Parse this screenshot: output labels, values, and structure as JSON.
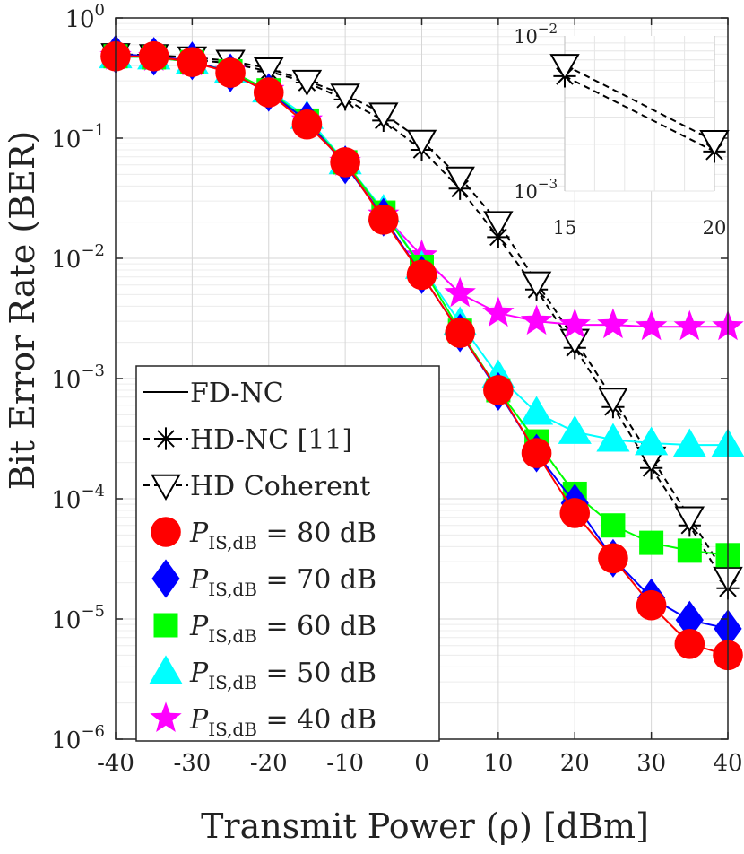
{
  "chart_data": {
    "type": "line",
    "xlabel": "Transmit Power (ρ) [dBm]",
    "ylabel": "Bit Error Rate (BER)",
    "yscale": "log",
    "xlim": [
      -40,
      40
    ],
    "ylim": [
      1e-06,
      1
    ],
    "grid": true,
    "x": [
      -40,
      -35,
      -30,
      -25,
      -20,
      -15,
      -10,
      -5,
      0,
      5,
      10,
      15,
      20,
      25,
      30,
      35,
      40
    ],
    "x_ticks": [
      "-40",
      "-30",
      "-20",
      "-10",
      "0",
      "10",
      "20",
      "30",
      "40"
    ],
    "y_ticks": [
      {
        "base": "10",
        "exp": "0"
      },
      {
        "base": "10",
        "exp": "−1"
      },
      {
        "base": "10",
        "exp": "−2"
      },
      {
        "base": "10",
        "exp": "−3"
      },
      {
        "base": "10",
        "exp": "−4"
      },
      {
        "base": "10",
        "exp": "−5"
      },
      {
        "base": "10",
        "exp": "−6"
      }
    ],
    "series": [
      {
        "name": "HD-NC [11]",
        "color": "#000000",
        "marker": "asterisk",
        "dash": true,
        "values": [
          0.48,
          0.47,
          0.45,
          0.42,
          0.36,
          0.29,
          0.21,
          0.14,
          0.08,
          0.038,
          0.015,
          0.0055,
          0.0018,
          0.00058,
          0.00018,
          6e-05,
          1.8e-05
        ]
      },
      {
        "name": "HD Coherent",
        "color": "#000000",
        "marker": "triangle-down",
        "dash": true,
        "values": [
          0.5,
          0.49,
          0.47,
          0.44,
          0.38,
          0.3,
          0.23,
          0.16,
          0.095,
          0.047,
          0.02,
          0.0063,
          0.0021,
          0.00068,
          0.00022,
          7e-05,
          2.2e-05
        ]
      },
      {
        "name": "P_IS,dB = 40 dB",
        "color": "#ff00ff",
        "marker": "star",
        "values": [
          0.48,
          0.47,
          0.43,
          0.36,
          0.25,
          0.14,
          0.063,
          0.023,
          0.0105,
          0.0051,
          0.0035,
          0.003,
          0.0028,
          0.0028,
          0.0027,
          0.0027,
          0.0027
        ]
      },
      {
        "name": "P_IS,dB = 50 dB",
        "color": "#00ffff",
        "marker": "triangle-up",
        "values": [
          0.48,
          0.47,
          0.43,
          0.36,
          0.25,
          0.15,
          0.063,
          0.025,
          0.0085,
          0.0029,
          0.00105,
          0.00052,
          0.00036,
          0.00031,
          0.00029,
          0.00028,
          0.00028
        ]
      },
      {
        "name": "P_IS,dB = 60 dB",
        "color": "#00ff00",
        "marker": "square",
        "values": [
          0.48,
          0.47,
          0.43,
          0.36,
          0.25,
          0.14,
          0.063,
          0.024,
          0.0085,
          0.0025,
          0.0008,
          0.0003,
          0.00011,
          6e-05,
          4.3e-05,
          3.7e-05,
          3.4e-05
        ]
      },
      {
        "name": "P_IS,dB = 70 dB",
        "color": "#0000ff",
        "marker": "diamond",
        "values": [
          0.5,
          0.48,
          0.44,
          0.35,
          0.24,
          0.14,
          0.06,
          0.022,
          0.0073,
          0.0024,
          0.00078,
          0.00024,
          9.2e-05,
          3.2e-05,
          1.5e-05,
          9.8e-06,
          8.3e-06
        ]
      },
      {
        "name": "P_IS,dB = 80 dB",
        "color": "#ff0000",
        "marker": "circle",
        "values": [
          0.48,
          0.48,
          0.43,
          0.35,
          0.24,
          0.13,
          0.063,
          0.021,
          0.0073,
          0.0024,
          0.0008,
          0.00024,
          7.6e-05,
          3.2e-05,
          1.3e-05,
          6.2e-06,
          5e-06
        ]
      }
    ],
    "legend": {
      "position": "lower-left",
      "entries": [
        {
          "label": "FD-NC",
          "style": "solid",
          "marker": "none",
          "color": "#000000"
        },
        {
          "label": "HD-NC [11]",
          "style": "dashed",
          "marker": "asterisk",
          "color": "#000000"
        },
        {
          "label": "HD Coherent",
          "style": "dashed",
          "marker": "triangle-down",
          "color": "#000000"
        },
        {
          "label": "P",
          "sub": "IS,dB",
          "value": " = 80 dB",
          "marker": "circle",
          "color": "#ff0000"
        },
        {
          "label": "P",
          "sub": "IS,dB",
          "value": " = 70 dB",
          "marker": "diamond",
          "color": "#0000ff"
        },
        {
          "label": "P",
          "sub": "IS,dB",
          "value": " = 60 dB",
          "marker": "square",
          "color": "#00ff00"
        },
        {
          "label": "P",
          "sub": "IS,dB",
          "value": " = 50 dB",
          "marker": "triangle-up",
          "color": "#00ffff"
        },
        {
          "label": "P",
          "sub": "IS,dB",
          "value": " = 40 dB",
          "marker": "star",
          "color": "#ff00ff"
        }
      ]
    },
    "inset": {
      "position": "top-right",
      "xlim": [
        15,
        20
      ],
      "ylim": [
        0.001,
        0.01
      ],
      "x_ticks": [
        "15",
        "20"
      ],
      "y_ticks": [
        {
          "base": "10",
          "exp": "−2"
        },
        {
          "base": "10",
          "exp": "−3"
        }
      ],
      "x": [
        15,
        20
      ],
      "series": [
        {
          "name": "HD-NC [11]",
          "marker": "asterisk",
          "values": [
            0.0055,
            0.0018
          ]
        },
        {
          "name": "HD Coherent",
          "marker": "triangle-down",
          "values": [
            0.0065,
            0.0021
          ]
        }
      ]
    }
  }
}
